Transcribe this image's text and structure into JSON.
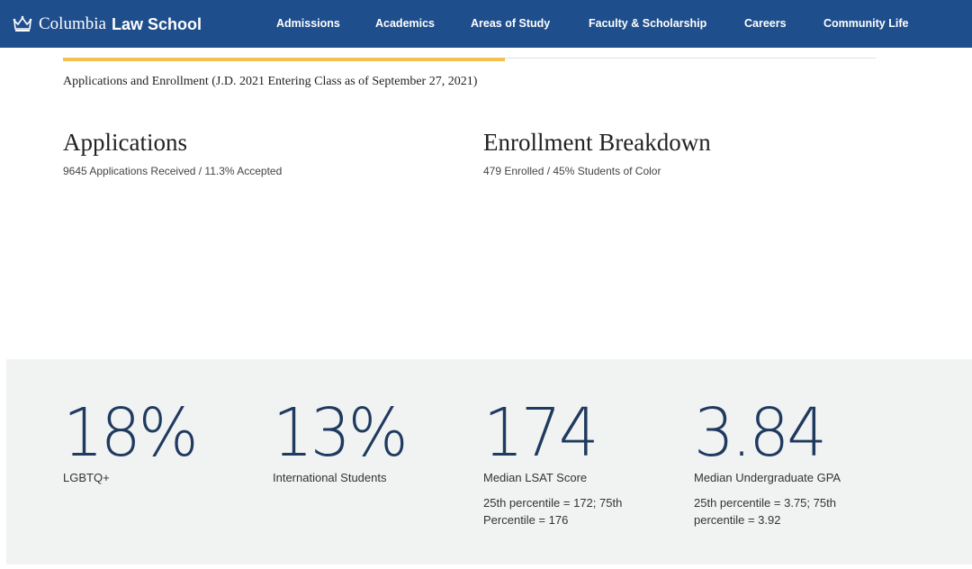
{
  "header": {
    "logo_serif": "Columbia",
    "logo_bold": "Law School",
    "logo_icon": "crown-icon",
    "brand_color": "#1f4e8c",
    "nav": [
      {
        "label": "Admissions"
      },
      {
        "label": "Academics"
      },
      {
        "label": "Areas of Study"
      },
      {
        "label": "Faculty & Scholarship"
      },
      {
        "label": "Careers"
      },
      {
        "label": "Community Life"
      }
    ]
  },
  "progress": {
    "fraction": 0.544,
    "color": "#f2c14e"
  },
  "intro": "Applications and Enrollment (J.D. 2021 Entering Class as of September 27, 2021)",
  "applications": {
    "title": "Applications",
    "subtitle": "9645 Applications Received / 11.3% Accepted"
  },
  "enrollment": {
    "title": "Enrollment Breakdown",
    "subtitle": "479 Enrolled / 45% Students of Color"
  },
  "stats": [
    {
      "value": "18%",
      "label": "LGBTQ+",
      "detail": ""
    },
    {
      "value": "13%",
      "label": "International Students",
      "detail": ""
    },
    {
      "value": "174",
      "label": "Median LSAT Score",
      "detail": "25th percentile = 172; 75th Percentile = 176"
    },
    {
      "value": "3.84",
      "label": "Median Undergraduate GPA",
      "detail": "25th percentile = 3.75; 75th percentile = 3.92"
    }
  ]
}
